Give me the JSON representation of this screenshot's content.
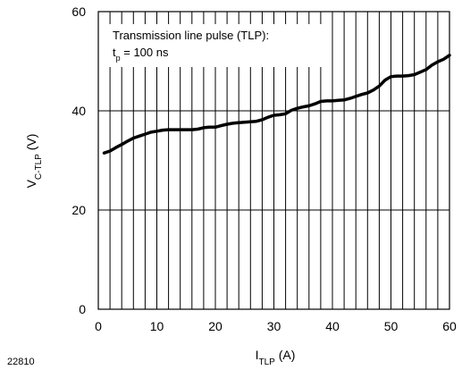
{
  "figure_id": "22810",
  "chart_data": {
    "type": "line",
    "xlabel": {
      "main": "I",
      "sub": "TLP",
      "unit": " (A)"
    },
    "ylabel": {
      "main": "V",
      "sub": "C-TLP",
      "unit": " (V)"
    },
    "xlim": [
      0,
      60
    ],
    "ylim": [
      0,
      60
    ],
    "x_ticks": [
      "0",
      "10",
      "20",
      "30",
      "40",
      "50",
      "60"
    ],
    "y_ticks": [
      "0",
      "20",
      "40",
      "60"
    ],
    "grid": true,
    "annotation": {
      "line1": "Transmission line pulse (TLP):",
      "line2_main": "t",
      "line2_sub": "p",
      "line2_rest": " = 100 ns"
    },
    "series": [
      {
        "x": [
          1,
          2,
          3,
          4,
          5,
          6,
          7,
          8,
          9,
          10,
          11,
          12,
          13,
          14,
          15,
          16,
          17,
          18,
          19,
          20,
          21,
          22,
          23,
          24,
          25,
          26,
          27,
          28,
          29,
          30,
          31,
          32,
          33,
          34,
          35,
          36,
          37,
          38,
          39,
          40,
          41,
          42,
          43,
          44,
          45,
          46,
          47,
          48,
          49,
          50,
          51,
          52,
          53,
          54,
          55,
          56,
          57,
          58,
          59,
          60
        ],
        "y": [
          31.5,
          31.9,
          32.6,
          33.2,
          33.9,
          34.5,
          34.9,
          35.3,
          35.7,
          35.9,
          36.1,
          36.2,
          36.2,
          36.2,
          36.2,
          36.2,
          36.3,
          36.6,
          36.7,
          36.7,
          37.0,
          37.3,
          37.5,
          37.6,
          37.7,
          37.8,
          37.9,
          38.2,
          38.7,
          39.1,
          39.2,
          39.4,
          40.1,
          40.5,
          40.8,
          41.0,
          41.4,
          41.9,
          42.0,
          42.0,
          42.1,
          42.2,
          42.5,
          42.9,
          43.3,
          43.6,
          44.2,
          45.0,
          46.2,
          46.9,
          47.0,
          47.0,
          47.1,
          47.3,
          47.8,
          48.3,
          49.2,
          49.9,
          50.4,
          51.2
        ]
      }
    ]
  }
}
